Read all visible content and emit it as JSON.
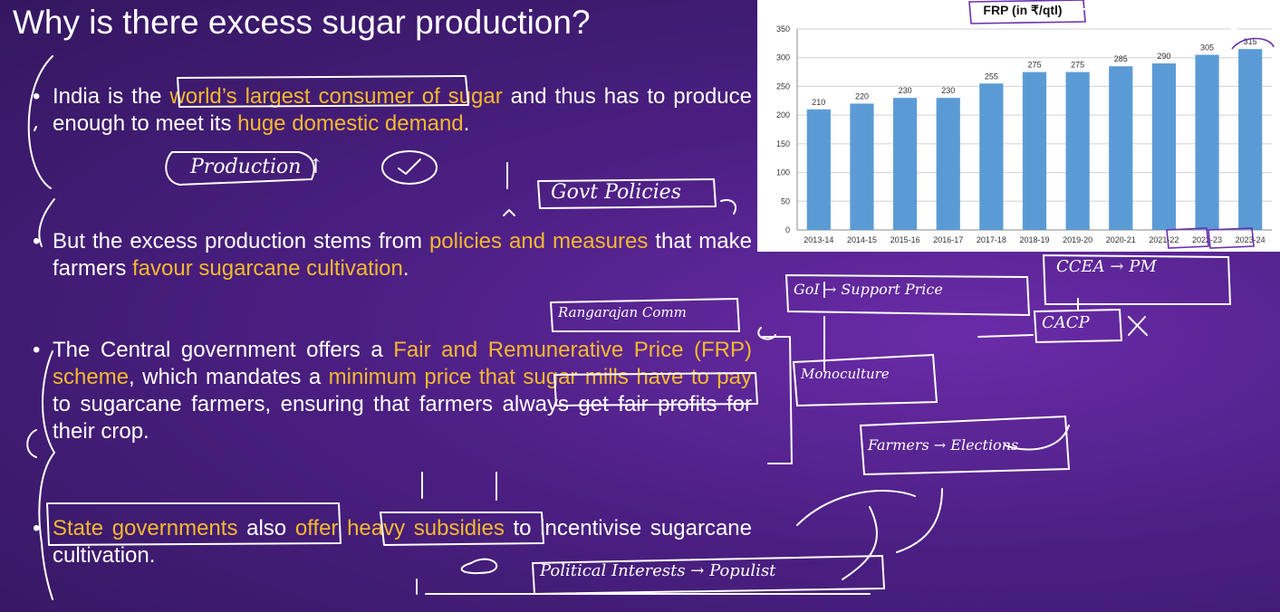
{
  "slide": {
    "title": "Why is there excess sugar production?"
  },
  "bullets": [
    {
      "parts": [
        {
          "text": "India is the ",
          "highlight": false
        },
        {
          "text": "world’s largest consumer of sugar",
          "highlight": true
        },
        {
          "text": " and thus has to produce enough to meet its ",
          "highlight": false
        },
        {
          "text": "huge domestic demand",
          "highlight": true
        },
        {
          "text": ".",
          "highlight": false
        }
      ]
    },
    {
      "parts": [
        {
          "text": "But the excess production stems from ",
          "highlight": false
        },
        {
          "text": "policies and measures",
          "highlight": true
        },
        {
          "text": " that make farmers ",
          "highlight": false
        },
        {
          "text": "favour sugarcane cultivation",
          "highlight": true
        },
        {
          "text": ".",
          "highlight": false
        }
      ]
    },
    {
      "parts": [
        {
          "text": "The Central government offers a ",
          "highlight": false
        },
        {
          "text": "Fair and Remunerative Price (FRP) scheme",
          "highlight": true
        },
        {
          "text": ", which mandates a ",
          "highlight": false
        },
        {
          "text": "minimum price that sugar mills have to pay",
          "highlight": true
        },
        {
          "text": " to sugarcane farmers, ensuring that farmers always get fair profits for their crop.",
          "highlight": false
        }
      ]
    },
    {
      "parts": [
        {
          "text": "State governments",
          "highlight": true
        },
        {
          "text": " also ",
          "highlight": false
        },
        {
          "text": "offer heavy subsidies",
          "highlight": true
        },
        {
          "text": " to incentivise sugarcane cultivation.",
          "highlight": false
        }
      ]
    }
  ],
  "annotations": {
    "production": "Production ↑",
    "govt_policies": "Govt Policies",
    "goi_support": "GoI → Support Price",
    "ccea_pm": "CCEA → PM",
    "cacp": "CACP",
    "rangarajan": "Rangarajan Comm",
    "monoculture": "Monoculture",
    "farmers_elections": "Farmers → Elections",
    "political": "Political Interests → Populist"
  },
  "chart_data": {
    "type": "bar",
    "title": "FRP (in ₹/qtl)",
    "categories": [
      "2013-14",
      "2014-15",
      "2015-16",
      "2016-17",
      "2017-18",
      "2018-19",
      "2019-20",
      "2020-21",
      "2021-22",
      "2022-23",
      "2023-24"
    ],
    "values": [
      210,
      220,
      230,
      230,
      255,
      275,
      275,
      285,
      290,
      305,
      315
    ],
    "ylim": [
      0,
      350
    ],
    "yticks": [
      0,
      50,
      100,
      150,
      200,
      250,
      300,
      350
    ],
    "grid": true,
    "bar_color": "#5b9bd5",
    "xlabel": "",
    "ylabel": ""
  },
  "colors": {
    "highlight": "#f5b92e",
    "ink": "#ffffff",
    "annotation_ink": "#6a2fb0"
  }
}
